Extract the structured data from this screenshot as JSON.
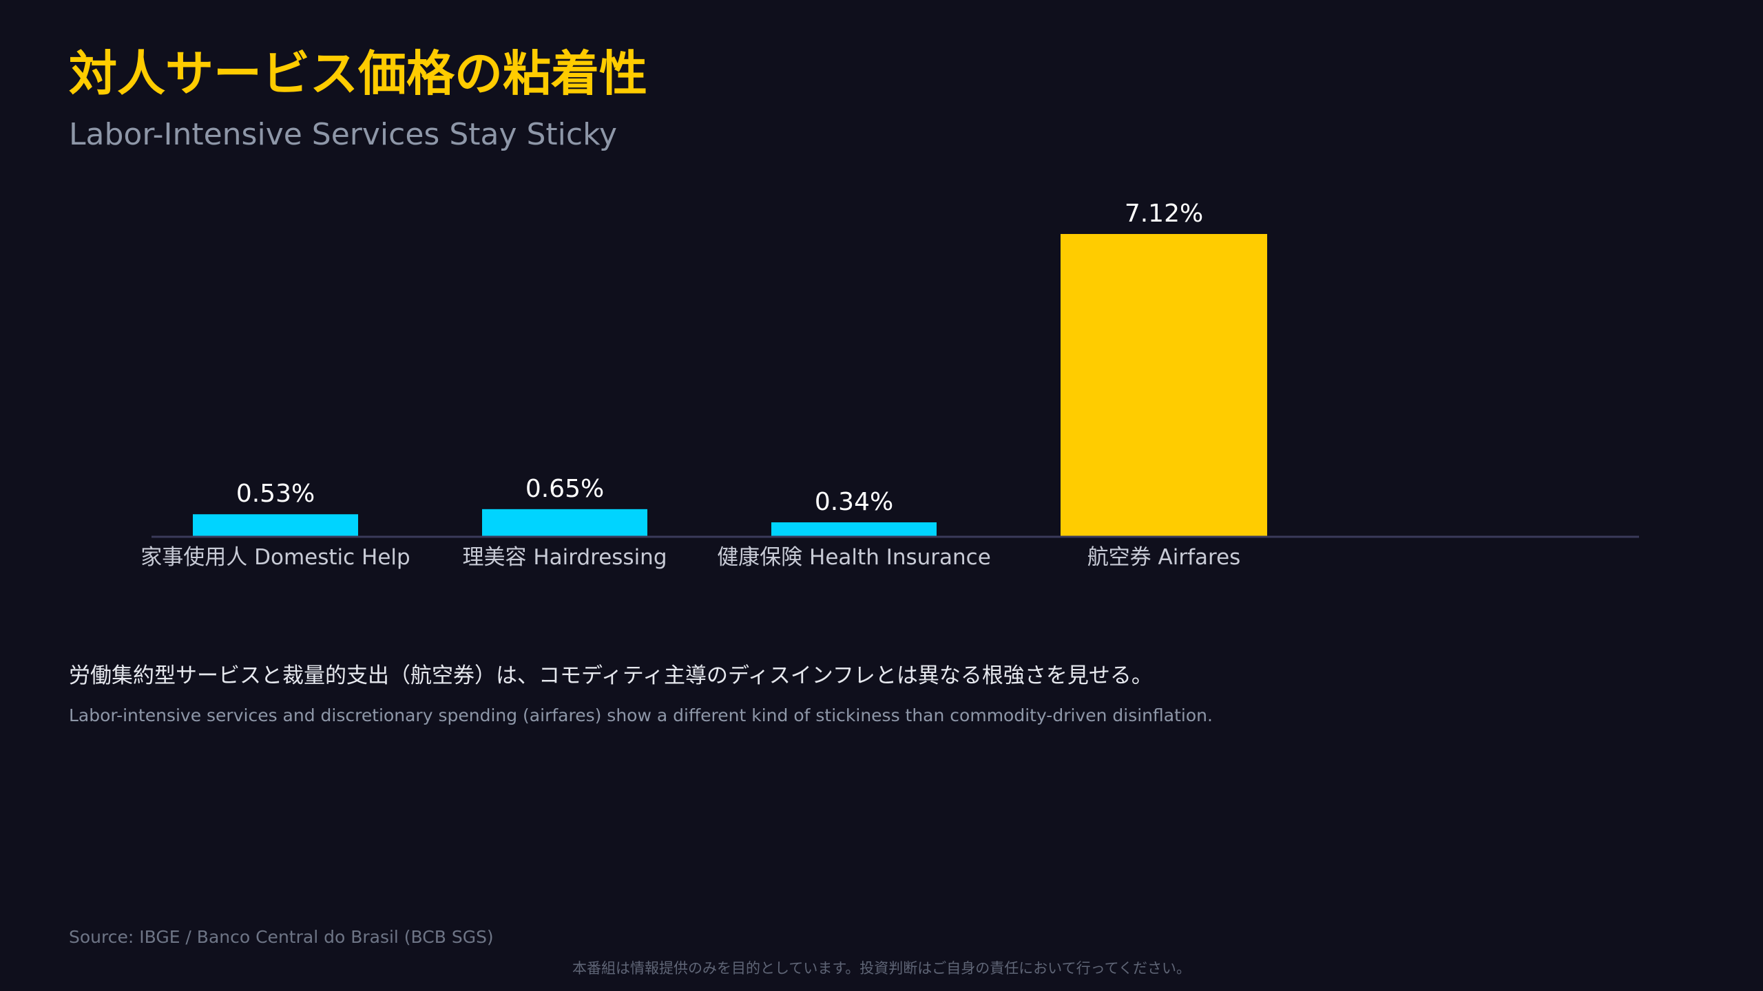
{
  "header": {
    "title": "対人サービス価格の粘着性",
    "subtitle": "Labor-Intensive Services Stay Sticky"
  },
  "chart_data": {
    "type": "bar",
    "categories": [
      "家事使用人 Domestic Help",
      "理美容 Hairdressing",
      "健康保険 Health Insurance",
      "航空券 Airfares"
    ],
    "values": [
      0.53,
      0.65,
      0.34,
      7.12
    ],
    "value_labels": [
      "0.53%",
      "0.65%",
      "0.34%",
      "7.12%"
    ],
    "colors": [
      "#00d4ff",
      "#00d4ff",
      "#00d4ff",
      "#ffcc00"
    ],
    "title": "",
    "xlabel": "",
    "ylabel": "",
    "ylim": [
      0,
      7.12
    ],
    "grid": false
  },
  "notes": {
    "ja": "労働集約型サービスと裁量的支出（航空券）は、コモディティ主導のディスインフレとは異なる根強さを見せる。",
    "en": "Labor-intensive services and discretionary spending (airfares) show a different kind of stickiness than commodity-driven disinflation."
  },
  "footer": {
    "source": "Source: IBGE / Banco Central do Brasil (BCB SGS)",
    "disclaimer": "本番組は情報提供のみを目的としています。投資判断はご自身の責任において行ってください。"
  },
  "colors": {
    "background": "#0f0f1c",
    "accent": "#ffcc00",
    "bar": "#00d4ff",
    "axis": "#3a3a5a"
  }
}
